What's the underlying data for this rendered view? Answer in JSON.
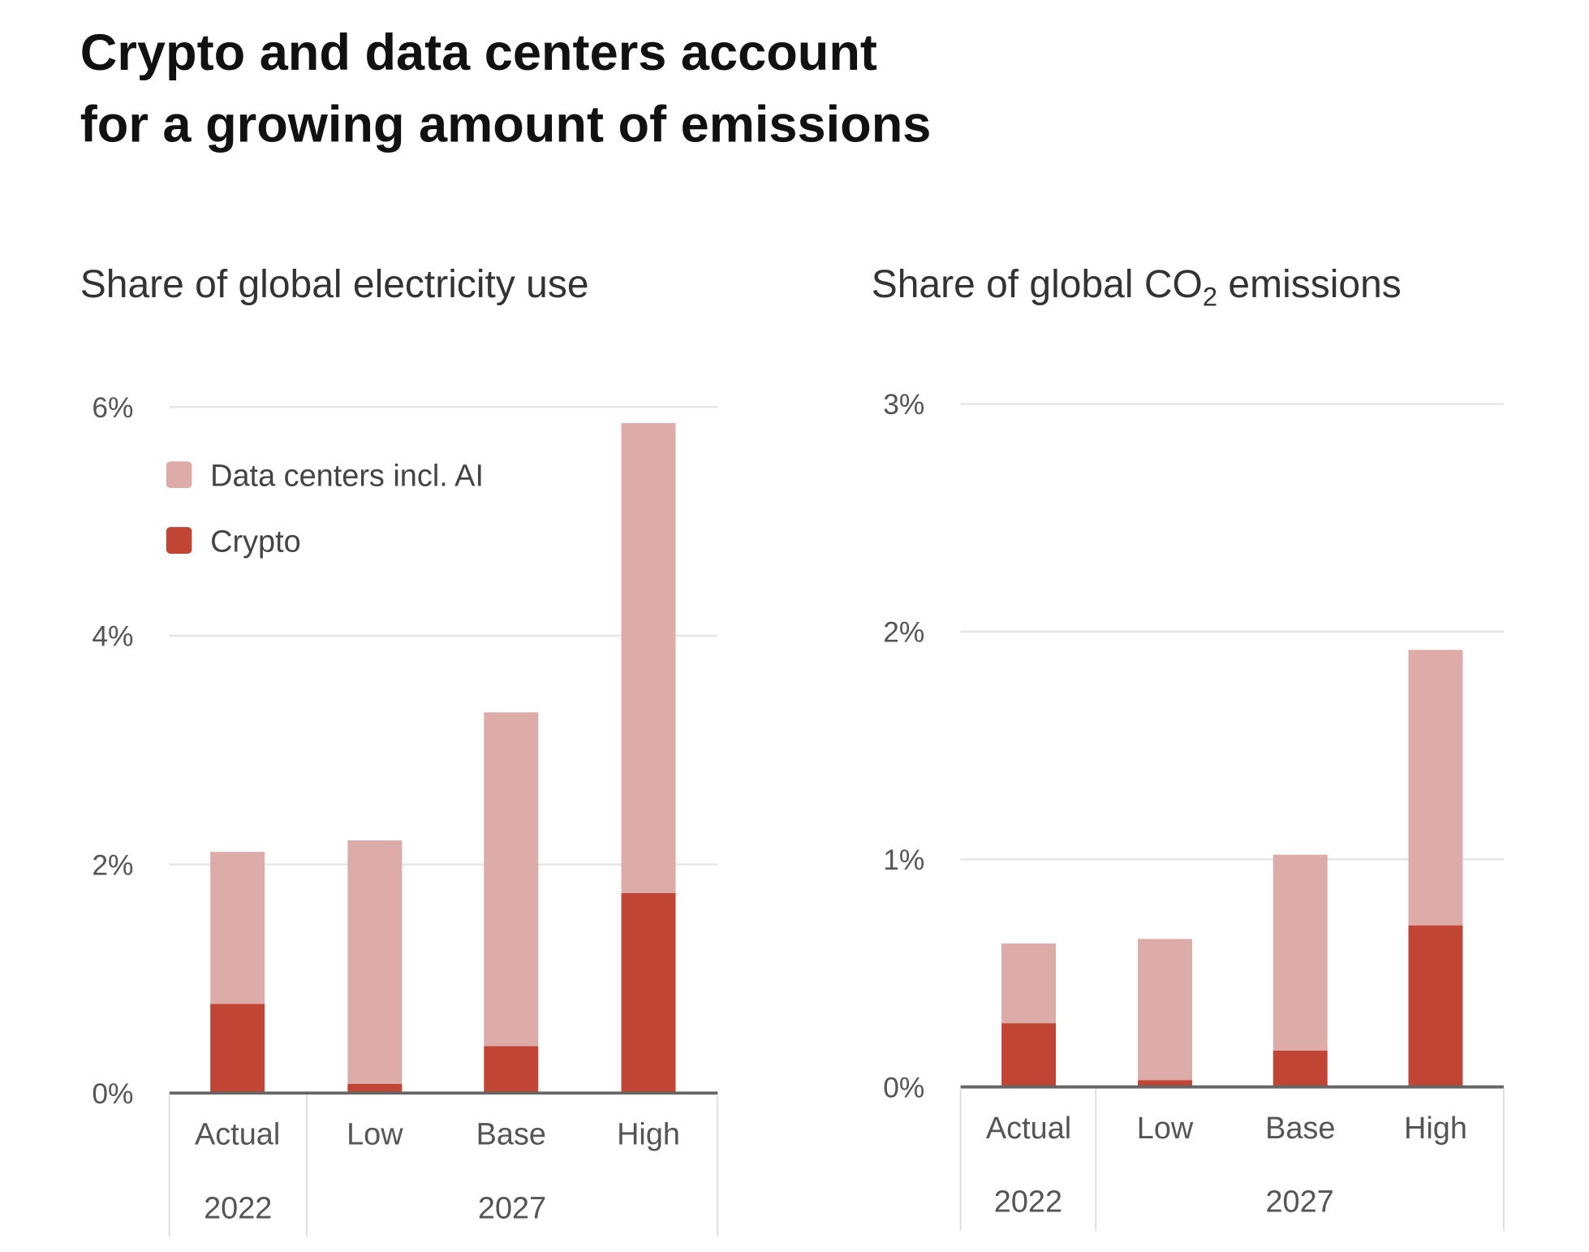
{
  "title_lines": [
    "Crypto and data centers account",
    "for a growing amount of emissions"
  ],
  "colors": {
    "data_centers": "#deaca8",
    "crypto": "#c04535"
  },
  "legend": [
    {
      "label": "Data centers incl. AI",
      "series": "data_centers"
    },
    {
      "label": "Crypto",
      "series": "crypto"
    }
  ],
  "chart_data": [
    {
      "type": "bar",
      "stacked": true,
      "title": "Share of global electricity use",
      "xlabel": "",
      "ylabel": "",
      "categories": [
        "Actual",
        "Low",
        "Base",
        "High"
      ],
      "category_groups": [
        {
          "label": "2022",
          "categories": [
            "Actual"
          ]
        },
        {
          "label": "2027",
          "categories": [
            "Low",
            "Base",
            "High"
          ]
        }
      ],
      "ylim": [
        0,
        6
      ],
      "yticks": [
        0,
        2,
        4,
        6
      ],
      "ytick_labels": [
        "0%",
        "2%",
        "4%",
        "6%"
      ],
      "grid": true,
      "legend_position": "top-left",
      "series": [
        {
          "name": "Crypto",
          "key": "crypto",
          "values": [
            0.78,
            0.08,
            0.41,
            1.75
          ]
        },
        {
          "name": "Data centers incl. AI",
          "key": "data_centers",
          "values": [
            1.33,
            2.13,
            2.92,
            4.11
          ]
        }
      ],
      "totals": [
        2.11,
        2.21,
        3.33,
        5.86
      ]
    },
    {
      "type": "bar",
      "stacked": true,
      "title": "Share of global CO",
      "title_sub": "2",
      "title_suffix": " emissions",
      "xlabel": "",
      "ylabel": "",
      "categories": [
        "Actual",
        "Low",
        "Base",
        "High"
      ],
      "category_groups": [
        {
          "label": "2022",
          "categories": [
            "Actual"
          ]
        },
        {
          "label": "2027",
          "categories": [
            "Low",
            "Base",
            "High"
          ]
        }
      ],
      "ylim": [
        0,
        3
      ],
      "yticks": [
        0,
        1,
        2,
        3
      ],
      "ytick_labels": [
        "0%",
        "1%",
        "2%",
        "3%"
      ],
      "grid": true,
      "series": [
        {
          "name": "Crypto",
          "key": "crypto",
          "values": [
            0.28,
            0.03,
            0.16,
            0.71
          ]
        },
        {
          "name": "Data centers incl. AI",
          "key": "data_centers",
          "values": [
            0.35,
            0.62,
            0.86,
            1.21
          ]
        }
      ],
      "totals": [
        0.63,
        0.65,
        1.02,
        1.92
      ]
    }
  ]
}
